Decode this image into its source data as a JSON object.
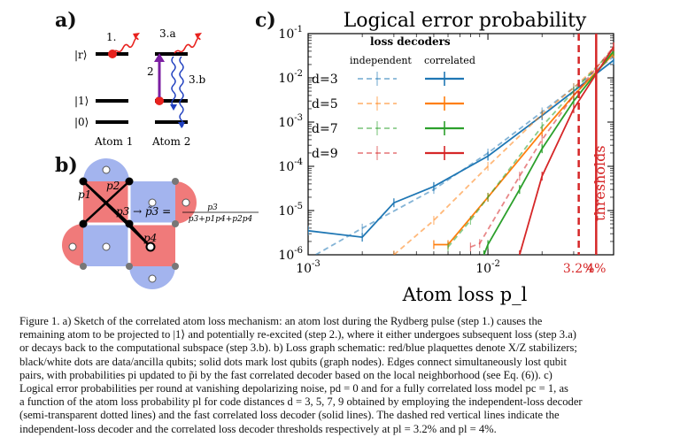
{
  "panel_a": {
    "label": "a)",
    "levels": [
      "|r⟩",
      "|1⟩",
      "|0⟩"
    ],
    "step_labels": [
      "1.",
      "3.a",
      "2",
      "3.b"
    ],
    "atoms": [
      "Atom 1",
      "Atom 2"
    ]
  },
  "panel_b": {
    "label": "b)",
    "edge_labels": [
      "p1",
      "p2",
      "p3",
      "p4"
    ],
    "formula_lhs": "p3 → p̃3 =",
    "formula_num": "p3",
    "formula_den": "p3+p1p4+p2p4"
  },
  "panel_c": {
    "label": "c)",
    "legend_title": "loss decoders",
    "legend_columns": [
      "independent",
      "correlated"
    ],
    "colors": {
      "d3": "#1f77b4",
      "d5": "#ff7f0e",
      "d7": "#2ca02c",
      "d9": "#d62728",
      "threshold": "#d62728"
    },
    "threshold_text": "thresholds",
    "threshold_tick_labels": [
      "3.2%",
      "4%"
    ]
  },
  "chart_data": {
    "type": "line",
    "title": "Logical error probability",
    "xlabel": "Atom loss p_l",
    "ylabel": "",
    "xscale": "log",
    "yscale": "log",
    "xlim": [
      0.001,
      0.05
    ],
    "ylim": [
      1e-06,
      0.1
    ],
    "x_tick_labels": [
      "10^-3",
      "10^-2"
    ],
    "y_tick_labels": [
      "10^-6",
      "10^-5",
      "10^-4",
      "10^-3",
      "10^-2",
      "10^-1"
    ],
    "threshold_lines": [
      {
        "x": 0.032,
        "style": "dashed",
        "label": "3.2%"
      },
      {
        "x": 0.04,
        "style": "solid",
        "label": "4%"
      }
    ],
    "series": [
      {
        "name": "d=3",
        "decoder": "independent",
        "x": [
          0.001,
          0.002,
          0.005,
          0.01,
          0.02,
          0.03,
          0.05
        ],
        "y": [
          8e-07,
          4e-06,
          3e-05,
          0.0002,
          0.0017,
          0.006,
          0.03
        ]
      },
      {
        "name": "d=3",
        "decoder": "correlated",
        "x": [
          0.001,
          0.002,
          0.003,
          0.005,
          0.01,
          0.02,
          0.03,
          0.05
        ],
        "y": [
          3.5e-06,
          2.5e-06,
          1.5e-05,
          3.5e-05,
          0.00017,
          0.0014,
          0.005,
          0.025
        ]
      },
      {
        "name": "d=5",
        "decoder": "independent",
        "x": [
          0.003,
          0.005,
          0.01,
          0.02,
          0.03,
          0.05
        ],
        "y": [
          1e-06,
          6e-06,
          0.0001,
          0.0015,
          0.006,
          0.04
        ]
      },
      {
        "name": "d=5",
        "decoder": "correlated",
        "x": [
          0.005,
          0.006,
          0.01,
          0.02,
          0.03,
          0.05
        ],
        "y": [
          1.7e-06,
          1.7e-06,
          2e-05,
          0.0006,
          0.004,
          0.035
        ]
      },
      {
        "name": "d=7",
        "decoder": "independent",
        "x": [
          0.006,
          0.008,
          0.01,
          0.02,
          0.03,
          0.05
        ],
        "y": [
          1.5e-06,
          6e-06,
          2e-05,
          0.0008,
          0.005,
          0.045
        ]
      },
      {
        "name": "d=7",
        "decoder": "correlated",
        "x": [
          0.0095,
          0.01,
          0.015,
          0.02,
          0.03,
          0.05
        ],
        "y": [
          1e-06,
          1.7e-06,
          3e-05,
          0.00025,
          0.003,
          0.04
        ]
      },
      {
        "name": "d=9",
        "decoder": "independent",
        "x": [
          0.008,
          0.009,
          0.015,
          0.02,
          0.03,
          0.05
        ],
        "y": [
          1.5e-06,
          1.8e-06,
          6e-05,
          0.0004,
          0.004,
          0.05
        ]
      },
      {
        "name": "d=9",
        "decoder": "correlated",
        "x": [
          0.015,
          0.02,
          0.03,
          0.05
        ],
        "y": [
          1e-06,
          6e-05,
          0.002,
          0.05
        ]
      }
    ]
  },
  "caption": {
    "lines": [
      "Figure 1. a) Sketch of the correlated atom loss mechanism: an atom lost during the Rydberg pulse (step 1.) causes the",
      "remaining atom to be projected to |1⟩ and potentially re-excited (step 2.), where it either undergoes subsequent loss (step 3.a)",
      "or decays back to the computational subspace (step 3.b). b) Loss graph schematic: red/blue plaquettes denote X/Z stabilizers;",
      "black/white dots are data/ancilla qubits; solid dots mark lost qubits (graph nodes). Edges connect simultaneously lost qubit",
      "pairs, with probabilities pi updated to p̃i by the fast correlated decoder based on the local neighborhood (see Eq. (6)). c)",
      "Logical error probabilities per round at vanishing depolarizing noise, pd = 0 and for a fully correlated loss model pc = 1, as",
      "a function of the atom loss probability pl for code distances d = 3, 5, 7, 9 obtained by employing the independent-loss decoder",
      "(semi-transparent dotted lines) and the fast correlated loss decoder (solid lines). The dashed red vertical lines indicate the",
      "independent-loss decoder and the correlated loss decoder thresholds respectively at pl = 3.2% and pl = 4%."
    ]
  }
}
